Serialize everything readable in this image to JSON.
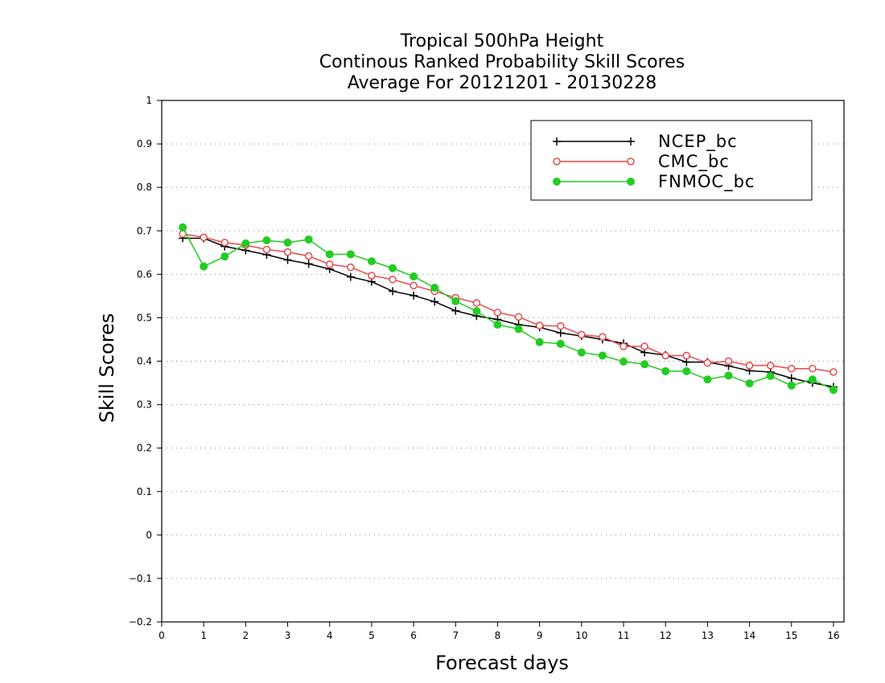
{
  "chart_data": {
    "type": "line",
    "title": [
      "Tropical 500hPa Height",
      "Continous Ranked Probability Skill Scores",
      "Average For 20121201 - 20130228"
    ],
    "xlabel": "Forecast days",
    "ylabel": "Skill Scores",
    "xlim": [
      0,
      16.25
    ],
    "ylim": [
      -0.2,
      1
    ],
    "xticks": [
      "0",
      "1",
      "2",
      "3",
      "4",
      "5",
      "6",
      "7",
      "8",
      "9",
      "10",
      "11",
      "12",
      "13",
      "14",
      "15",
      "16"
    ],
    "yticks": [
      "-0.2",
      "-0.1",
      "0",
      "0.1",
      "0.2",
      "0.3",
      "0.4",
      "0.5",
      "0.6",
      "0.7",
      "0.8",
      "0.9",
      "1"
    ],
    "grid": "horizontal-dotted",
    "legend_position": "top-right",
    "x": [
      0.5,
      1,
      1.5,
      2,
      2.5,
      3,
      3.5,
      4,
      4.5,
      5,
      5.5,
      6,
      6.5,
      7,
      7.5,
      8,
      8.5,
      9,
      9.5,
      10,
      10.5,
      11,
      11.5,
      12,
      12.5,
      13,
      13.5,
      14,
      14.5,
      15,
      15.5,
      16
    ],
    "series": [
      {
        "name": "NCEP_bc",
        "color": "#000000",
        "marker": "plus",
        "values": [
          0.683,
          0.683,
          0.664,
          0.655,
          0.645,
          0.633,
          0.624,
          0.612,
          0.594,
          0.583,
          0.561,
          0.551,
          0.537,
          0.516,
          0.504,
          0.496,
          0.484,
          0.478,
          0.465,
          0.458,
          0.45,
          0.441,
          0.42,
          0.414,
          0.398,
          0.398,
          0.389,
          0.378,
          0.375,
          0.361,
          0.35,
          0.341
        ]
      },
      {
        "name": "CMC_bc",
        "color": "#e8494b",
        "marker": "open-circle",
        "values": [
          0.693,
          0.685,
          0.673,
          0.667,
          0.657,
          0.651,
          0.642,
          0.623,
          0.616,
          0.597,
          0.588,
          0.574,
          0.561,
          0.546,
          0.534,
          0.512,
          0.502,
          0.482,
          0.481,
          0.461,
          0.456,
          0.434,
          0.434,
          0.413,
          0.413,
          0.396,
          0.4,
          0.39,
          0.39,
          0.383,
          0.383,
          0.375
        ]
      },
      {
        "name": "FNMOC_bc",
        "color": "#22cc22",
        "marker": "filled-circle",
        "values": [
          0.708,
          0.618,
          0.641,
          0.671,
          0.678,
          0.673,
          0.68,
          0.646,
          0.646,
          0.63,
          0.614,
          0.595,
          0.569,
          0.538,
          0.515,
          0.484,
          0.474,
          0.444,
          0.44,
          0.42,
          0.413,
          0.399,
          0.393,
          0.377,
          0.377,
          0.358,
          0.367,
          0.349,
          0.366,
          0.344,
          0.358,
          0.334
        ]
      }
    ]
  }
}
